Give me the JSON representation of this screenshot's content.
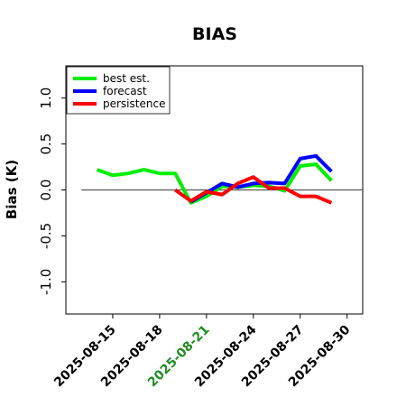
{
  "chart_data": {
    "type": "line",
    "title": "BIAS",
    "xlabel": "",
    "ylabel": "Bias (K)",
    "ylim": [
      -1.35,
      1.35
    ],
    "y_ticks": [
      -1.0,
      -0.5,
      0.0,
      0.5,
      1.0
    ],
    "y_tick_labels": [
      "-1.0",
      "-0.5",
      "0.0",
      "0.5",
      "1.0"
    ],
    "xlim": [
      "2025-08-12",
      "2025-08-31"
    ],
    "x_ticks": [
      "2025-08-15",
      "2025-08-18",
      "2025-08-21",
      "2025-08-24",
      "2025-08-27",
      "2025-08-30"
    ],
    "highlighted_x_tick": "2025-08-21",
    "highlight_color": "#228b22",
    "reference_line": {
      "y": 0.0,
      "x_start": "2025-08-13",
      "x_end": "2025-08-31"
    },
    "legend_position": "upper left",
    "series": [
      {
        "name": "best est.",
        "color": "#00ee00",
        "points": [
          {
            "x": "2025-08-14",
            "y": 0.22
          },
          {
            "x": "2025-08-15",
            "y": 0.16
          },
          {
            "x": "2025-08-16",
            "y": 0.18
          },
          {
            "x": "2025-08-17",
            "y": 0.22
          },
          {
            "x": "2025-08-18",
            "y": 0.18
          },
          {
            "x": "2025-08-19",
            "y": 0.18
          },
          {
            "x": "2025-08-20",
            "y": -0.14
          },
          {
            "x": "2025-08-21",
            "y": -0.07
          },
          {
            "x": "2025-08-22",
            "y": 0.04
          },
          {
            "x": "2025-08-23",
            "y": 0.03
          },
          {
            "x": "2025-08-24",
            "y": 0.05
          },
          {
            "x": "2025-08-25",
            "y": 0.04
          },
          {
            "x": "2025-08-26",
            "y": -0.01
          },
          {
            "x": "2025-08-27",
            "y": 0.26
          },
          {
            "x": "2025-08-28",
            "y": 0.28
          },
          {
            "x": "2025-08-29",
            "y": 0.1
          }
        ]
      },
      {
        "name": "forecast",
        "color": "#0000ff",
        "points": [
          {
            "x": "2025-08-20",
            "y": -0.13
          },
          {
            "x": "2025-08-21",
            "y": -0.03
          },
          {
            "x": "2025-08-22",
            "y": 0.07
          },
          {
            "x": "2025-08-23",
            "y": 0.03
          },
          {
            "x": "2025-08-24",
            "y": 0.07
          },
          {
            "x": "2025-08-25",
            "y": 0.08
          },
          {
            "x": "2025-08-26",
            "y": 0.07
          },
          {
            "x": "2025-08-27",
            "y": 0.34
          },
          {
            "x": "2025-08-28",
            "y": 0.37
          },
          {
            "x": "2025-08-29",
            "y": 0.2
          }
        ]
      },
      {
        "name": "persistence",
        "color": "#ff0000",
        "points": [
          {
            "x": "2025-08-19",
            "y": 0.0
          },
          {
            "x": "2025-08-20",
            "y": -0.12
          },
          {
            "x": "2025-08-21",
            "y": -0.02
          },
          {
            "x": "2025-08-22",
            "y": -0.05
          },
          {
            "x": "2025-08-23",
            "y": 0.07
          },
          {
            "x": "2025-08-24",
            "y": 0.14
          },
          {
            "x": "2025-08-25",
            "y": 0.02
          },
          {
            "x": "2025-08-26",
            "y": 0.02
          },
          {
            "x": "2025-08-27",
            "y": -0.07
          },
          {
            "x": "2025-08-28",
            "y": -0.07
          },
          {
            "x": "2025-08-29",
            "y": -0.14
          }
        ]
      }
    ]
  }
}
